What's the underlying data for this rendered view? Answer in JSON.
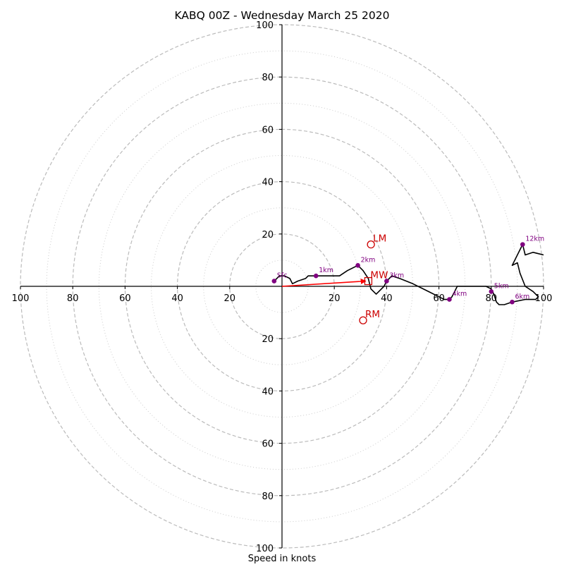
{
  "chart_data": {
    "type": "line",
    "title": "KABQ 00Z - Wednesday March 25 2020",
    "xlabel": "Speed in knots",
    "ylabel": "",
    "xlim": [
      -100,
      100
    ],
    "ylim": [
      -100,
      100
    ],
    "ticks": {
      "x": [
        {
          "value": -100,
          "label": "100"
        },
        {
          "value": -80,
          "label": "80"
        },
        {
          "value": -60,
          "label": "60"
        },
        {
          "value": -40,
          "label": "40"
        },
        {
          "value": -20,
          "label": "20"
        },
        {
          "value": 20,
          "label": "20"
        },
        {
          "value": 40,
          "label": "40"
        },
        {
          "value": 60,
          "label": "60"
        },
        {
          "value": 80,
          "label": "80"
        },
        {
          "value": 100,
          "label": "100"
        }
      ],
      "y": [
        {
          "value": 100,
          "label": "100"
        },
        {
          "value": 80,
          "label": "80"
        },
        {
          "value": 60,
          "label": "60"
        },
        {
          "value": 40,
          "label": "40"
        },
        {
          "value": 20,
          "label": "20"
        },
        {
          "value": -20,
          "label": "20"
        },
        {
          "value": -40,
          "label": "40"
        },
        {
          "value": -60,
          "label": "60"
        },
        {
          "value": -80,
          "label": "80"
        },
        {
          "value": -100,
          "label": "100"
        }
      ]
    },
    "rings_major": [
      20,
      40,
      60,
      80,
      100
    ],
    "rings_minor": [
      10,
      30,
      50,
      70,
      90
    ],
    "hodograph": [
      [
        -3,
        2
      ],
      [
        -2,
        3
      ],
      [
        -1,
        4
      ],
      [
        1,
        4
      ],
      [
        3,
        3
      ],
      [
        4,
        1
      ],
      [
        6,
        2
      ],
      [
        9,
        3
      ],
      [
        10,
        4
      ],
      [
        13,
        4
      ],
      [
        16,
        4
      ],
      [
        22,
        4
      ],
      [
        25,
        6
      ],
      [
        29,
        8
      ],
      [
        31,
        6
      ],
      [
        33,
        3
      ],
      [
        34,
        -1
      ],
      [
        35,
        -2
      ],
      [
        36,
        -3
      ],
      [
        37,
        -2
      ],
      [
        39,
        0
      ],
      [
        40,
        2
      ],
      [
        41,
        3
      ],
      [
        42,
        4
      ],
      [
        45,
        3
      ],
      [
        50,
        1
      ],
      [
        56,
        -2
      ],
      [
        60,
        -4
      ],
      [
        62,
        -5
      ],
      [
        64,
        -5
      ],
      [
        65,
        -4
      ],
      [
        66,
        -2
      ],
      [
        67,
        0
      ],
      [
        68,
        0
      ],
      [
        73,
        0
      ],
      [
        78,
        0
      ],
      [
        80,
        -1
      ],
      [
        81,
        -3
      ],
      [
        82,
        -6
      ],
      [
        83,
        -7
      ],
      [
        85,
        -7
      ],
      [
        88,
        -6
      ],
      [
        93,
        -5
      ],
      [
        97,
        -5
      ],
      [
        98,
        -4
      ],
      [
        96,
        -2
      ],
      [
        93,
        0
      ],
      [
        91,
        5
      ],
      [
        90,
        9
      ],
      [
        88,
        8
      ],
      [
        92,
        16
      ],
      [
        93,
        12
      ],
      [
        96,
        13
      ],
      [
        100,
        12
      ]
    ],
    "height_markers": [
      {
        "label": "Sfc",
        "x": -3,
        "y": 2
      },
      {
        "label": "1km",
        "x": 13,
        "y": 4
      },
      {
        "label": "2km",
        "x": 29,
        "y": 8
      },
      {
        "label": "3km",
        "x": 40,
        "y": 2
      },
      {
        "label": "4km",
        "x": 64,
        "y": -5
      },
      {
        "label": "5km",
        "x": 80,
        "y": -2
      },
      {
        "label": "6km",
        "x": 88,
        "y": -6
      },
      {
        "label": "12km",
        "x": 92,
        "y": 16
      }
    ],
    "storm_motion": [
      {
        "label": "LM",
        "x": 34,
        "y": 16,
        "marker": "circle"
      },
      {
        "label": "MW",
        "x": 33,
        "y": 2,
        "marker": "square"
      },
      {
        "label": "RM",
        "x": 31,
        "y": -13,
        "marker": "circle"
      }
    ],
    "shear_vector": {
      "from": [
        0,
        0
      ],
      "to": [
        32,
        2
      ]
    },
    "colors": {
      "hodograph": "#000000",
      "markers": "#800080",
      "storm_motion": "#cc0000",
      "rings": "#bbbbbb"
    }
  }
}
